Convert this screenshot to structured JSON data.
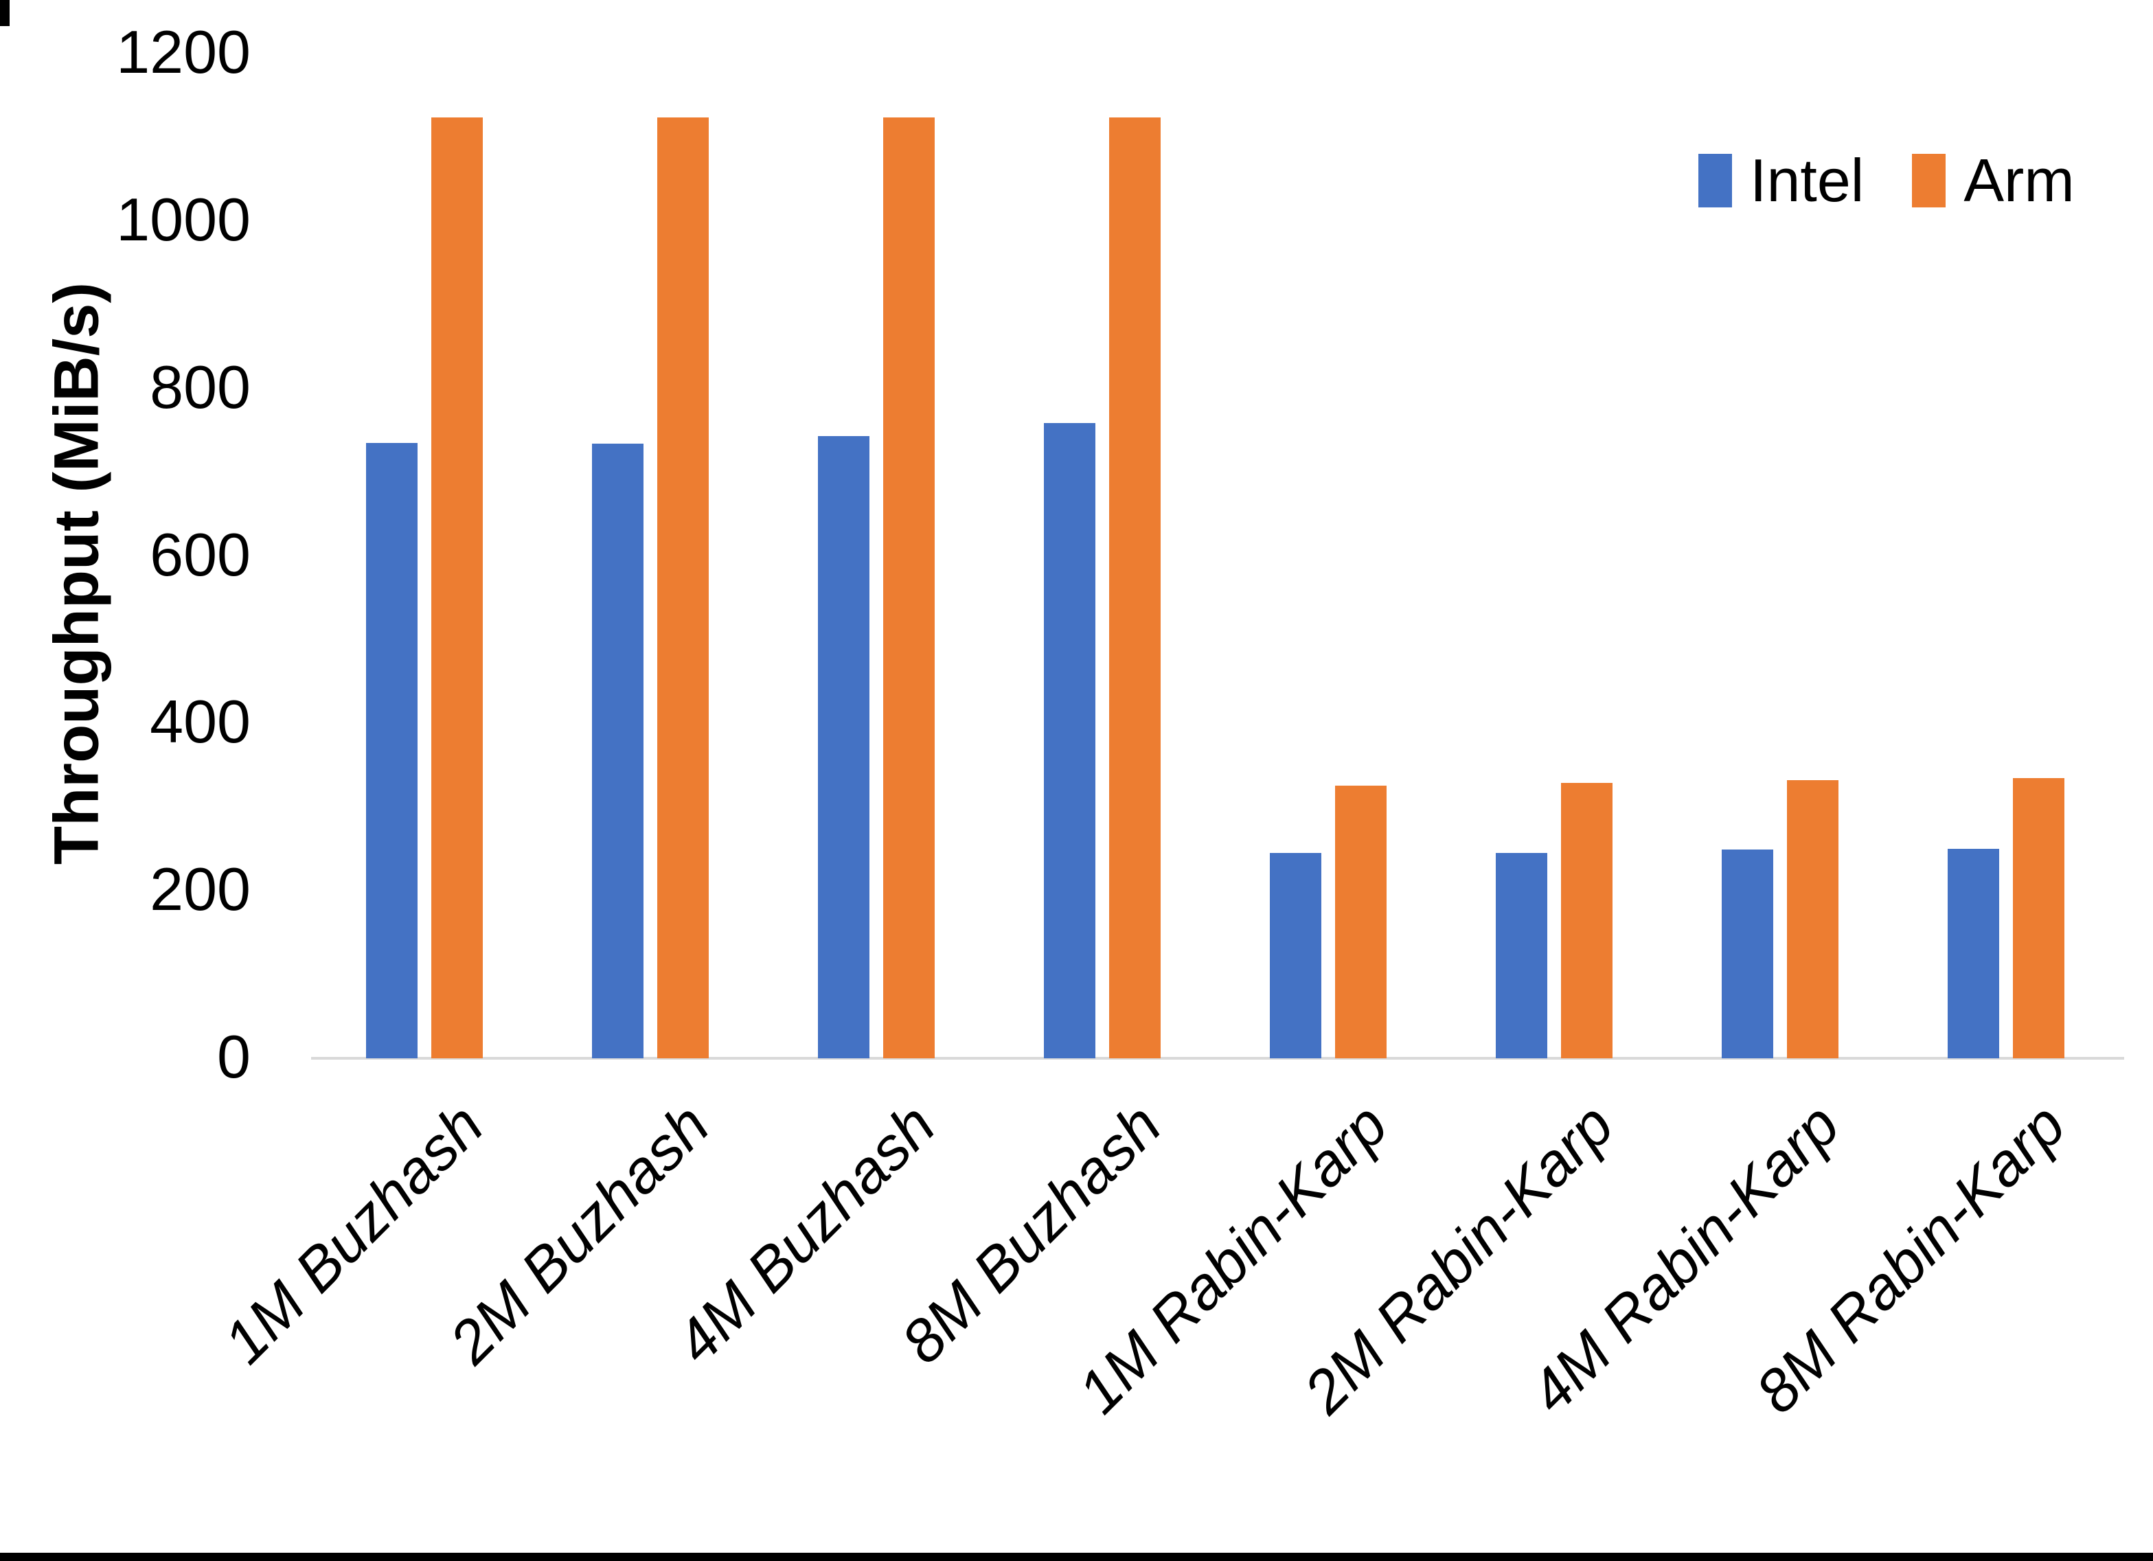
{
  "chart_data": {
    "type": "bar",
    "title": "",
    "categories": [
      "1M Buzhash",
      "2M Buzhash",
      "4M Buzhash",
      "8M Buzhash",
      "1M Rabin-Karp",
      "2M Rabin-Karp",
      "4M Rabin-Karp",
      "8M Rabin-Karp"
    ],
    "series": [
      {
        "name": "Intel",
        "color": "#4472C4",
        "values": [
          735,
          734,
          743,
          759,
          245,
          245,
          249,
          250
        ]
      },
      {
        "name": "Arm",
        "color": "#ED7D31",
        "values": [
          1124,
          1124,
          1124,
          1124,
          326,
          329,
          332,
          335
        ]
      }
    ],
    "xlabel": "",
    "ylabel": "Throughput (MiB/s)",
    "ylim": [
      0,
      1200
    ],
    "yticks": [
      0,
      200,
      400,
      600,
      800,
      1000,
      1200
    ],
    "grid": false,
    "legend_position": "top-right",
    "axis_line_color": "#D9D9D9",
    "background_color": "#FFFFFF",
    "text_color": "#000000"
  },
  "legend": {
    "items": [
      {
        "label": "Intel",
        "color": "#4472C4"
      },
      {
        "label": "Arm",
        "color": "#ED7D31"
      }
    ]
  }
}
